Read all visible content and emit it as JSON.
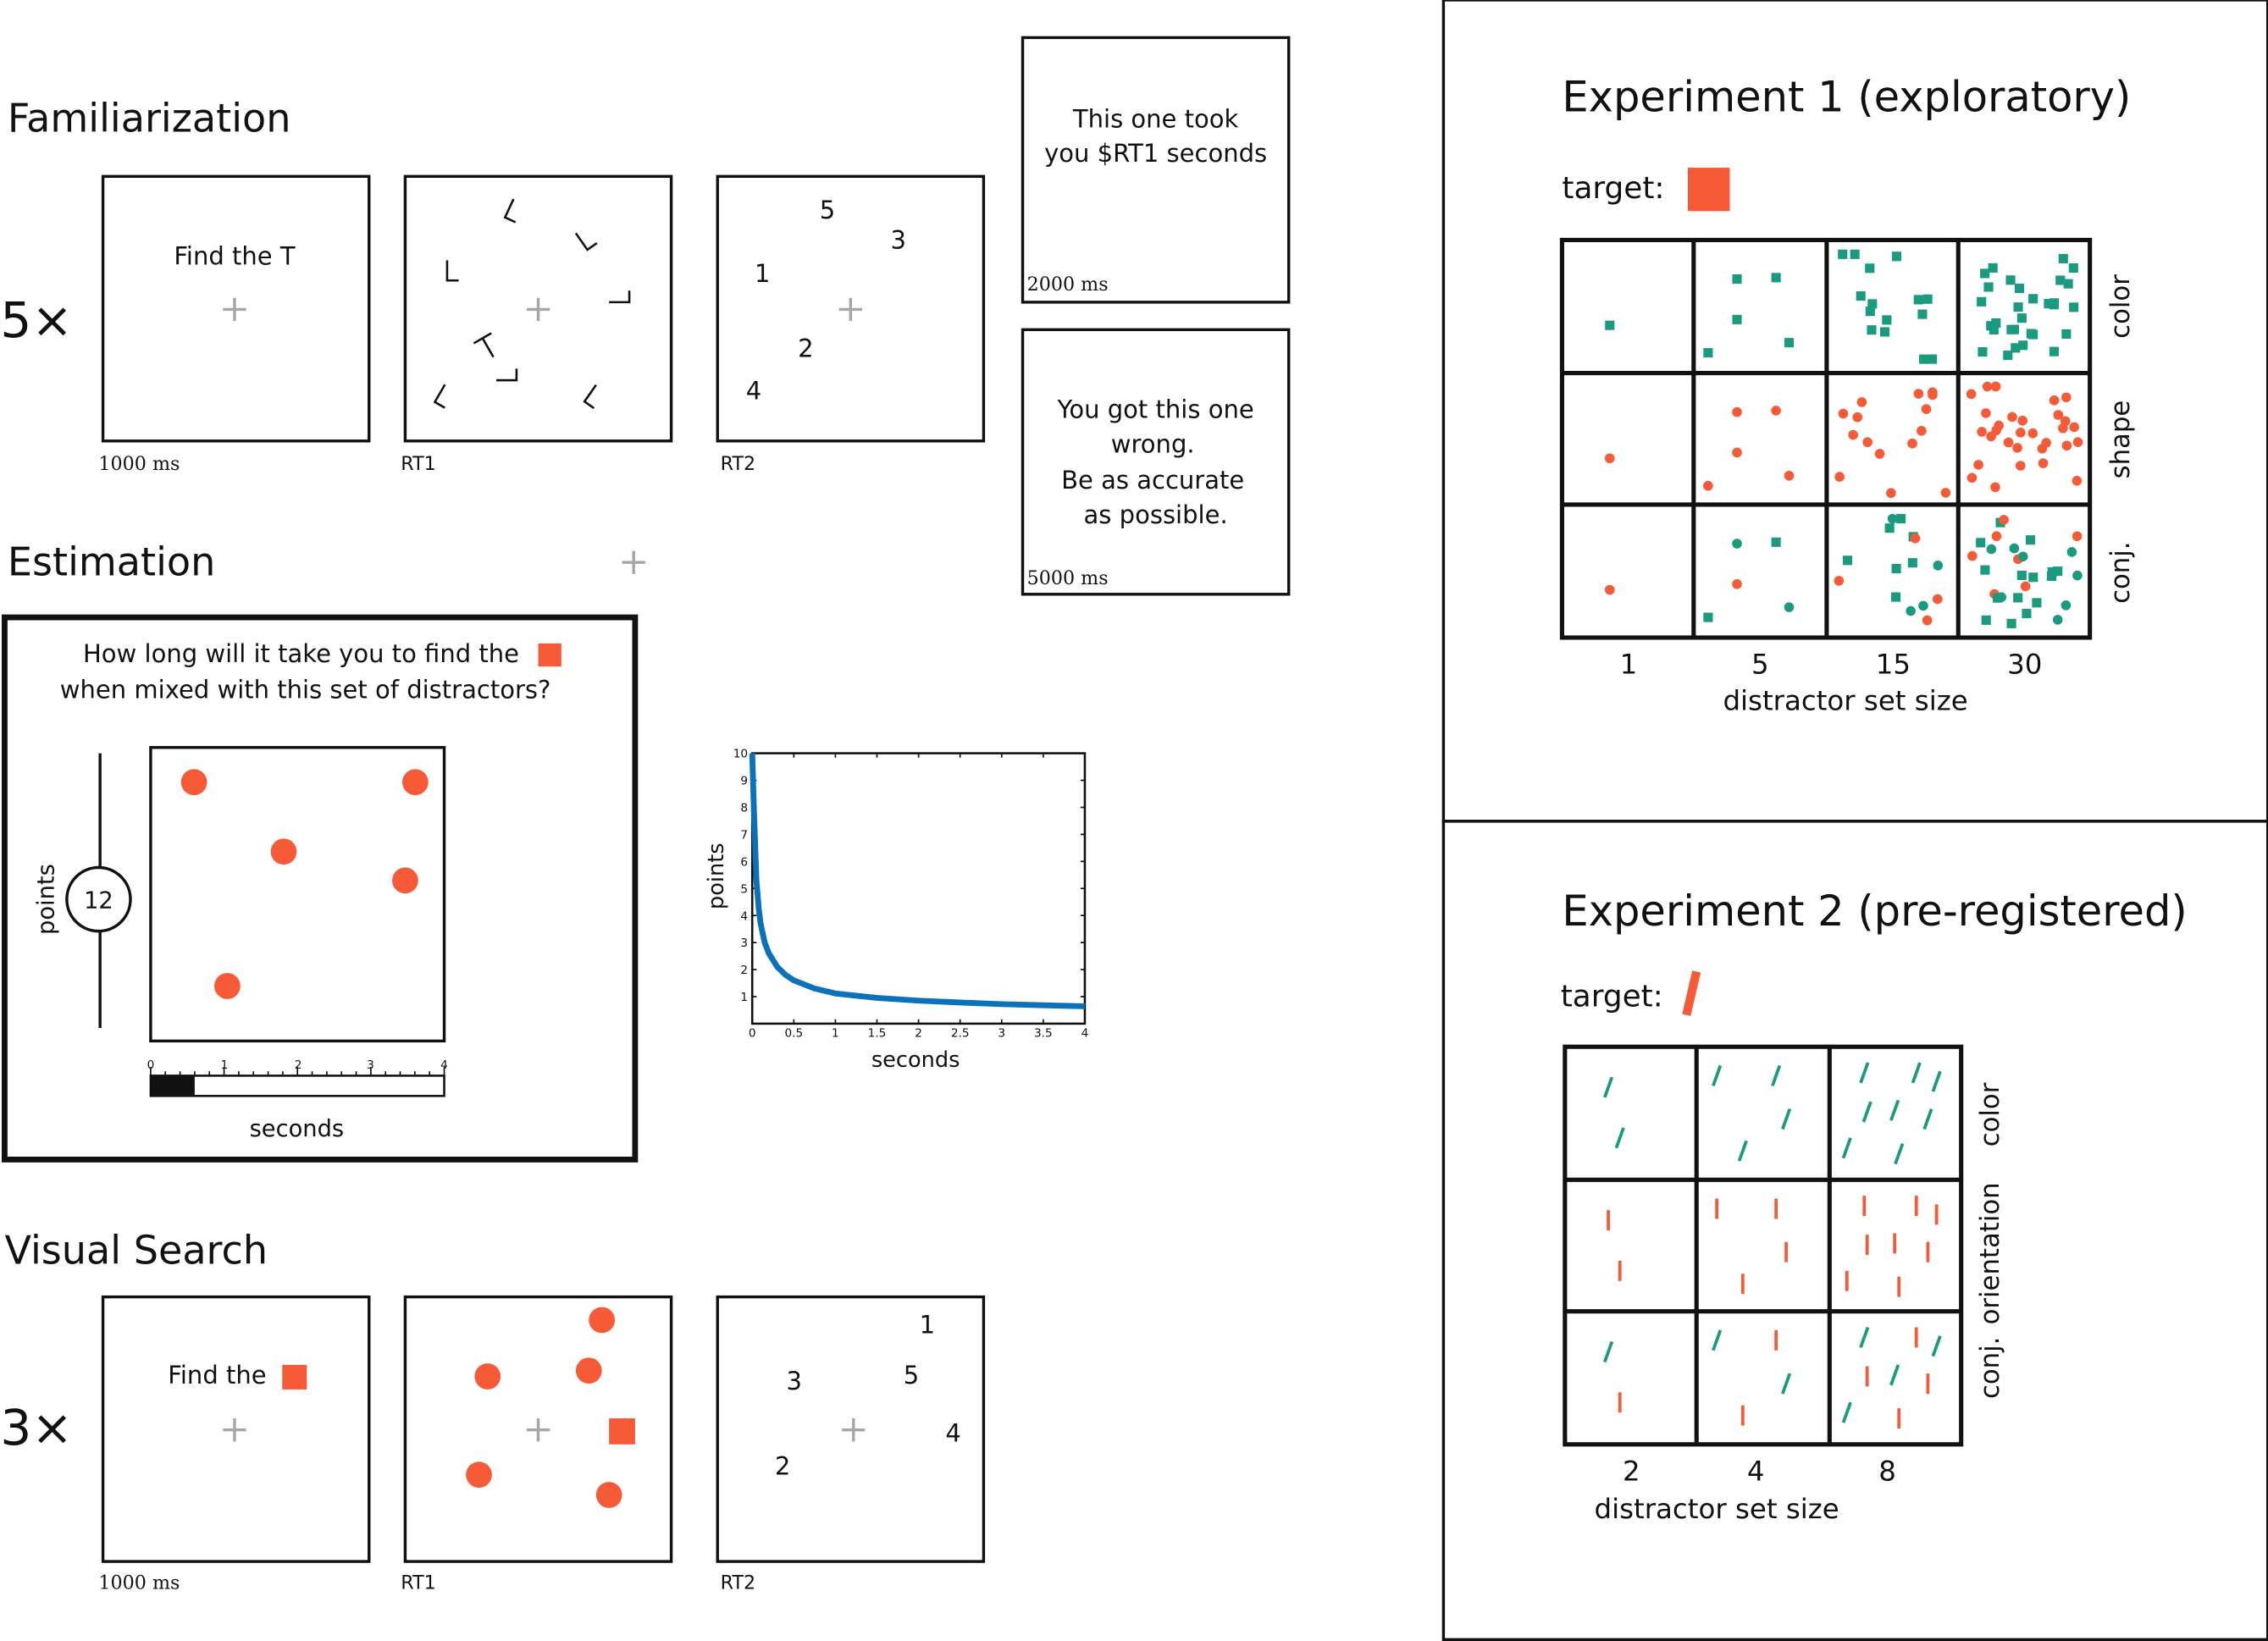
{
  "colors": {
    "orange": "#f65a36",
    "teal": "#1a9a7e",
    "blue": "#0c71bb",
    "fixation": "#a6a6a6",
    "ink": "#111111"
  },
  "familiarization": {
    "title": "Familiarization",
    "repeat": "5×",
    "screen1_text": "Find the T",
    "screen1_time": "1000 ms",
    "screen2_time": "RT1",
    "screen3_time": "RT2",
    "digits": [
      "5",
      "3",
      "1",
      "2",
      "4"
    ]
  },
  "feedback": {
    "took_line1": "This one took",
    "took_line2": "you $RT1 seconds",
    "took_time": "2000 ms",
    "wrong_line1": "You got this one",
    "wrong_line2": "wrong.",
    "wrong_line3": "Be as accurate",
    "wrong_line4": "as possible.",
    "wrong_time": "5000 ms"
  },
  "estimation": {
    "title": "Estimation",
    "question_line1": "How long will it take you to find the",
    "question_line2": "when mixed with this set of distractors?",
    "points_label": "points",
    "points_value": "12",
    "seconds_label": "seconds",
    "ruler_ticks": [
      "0",
      "1",
      "2",
      "3",
      "4"
    ],
    "ruler_fill": 0.15
  },
  "chart_data": {
    "type": "line",
    "xlabel": "seconds",
    "ylabel": "points",
    "xlim": [
      0,
      4
    ],
    "ylim": [
      0,
      10
    ],
    "xticks": [
      "0",
      "0.5",
      "1",
      "1.5",
      "2",
      "2.5",
      "3",
      "3.5",
      "4"
    ],
    "yticks": [
      "1",
      "2",
      "3",
      "4",
      "5",
      "6",
      "7",
      "8",
      "9",
      "10"
    ],
    "series": [
      {
        "color": "#0c71bb",
        "x": [
          0.0,
          0.02,
          0.05,
          0.08,
          0.1,
          0.15,
          0.2,
          0.3,
          0.4,
          0.5,
          0.75,
          1.0,
          1.5,
          2.0,
          2.5,
          3.0,
          3.5,
          4.0
        ],
        "y": [
          10.0,
          8.0,
          5.3,
          4.2,
          3.7,
          3.0,
          2.6,
          2.1,
          1.8,
          1.6,
          1.3,
          1.12,
          0.95,
          0.85,
          0.78,
          0.72,
          0.68,
          0.64
        ]
      }
    ]
  },
  "visual_search": {
    "title": "Visual Search",
    "repeat": "3×",
    "screen1_text": "Find the",
    "screen1_time": "1000 ms",
    "screen2_time": "RT1",
    "screen3_time": "RT2",
    "digits": [
      "1",
      "3",
      "5",
      "4",
      "2"
    ]
  },
  "experiment1": {
    "title": "Experiment 1 (exploratory)",
    "target_label": "target:",
    "columns": [
      "1",
      "5",
      "15",
      "30"
    ],
    "rows": [
      "color",
      "shape",
      "conj."
    ],
    "xlabel": "distractor set size"
  },
  "experiment2": {
    "title": "Experiment 2 (pre-registered)",
    "target_label": "target:",
    "columns": [
      "2",
      "4",
      "8"
    ],
    "rows": [
      "color",
      "orientation",
      "conj."
    ],
    "xlabel": "distractor set size"
  }
}
